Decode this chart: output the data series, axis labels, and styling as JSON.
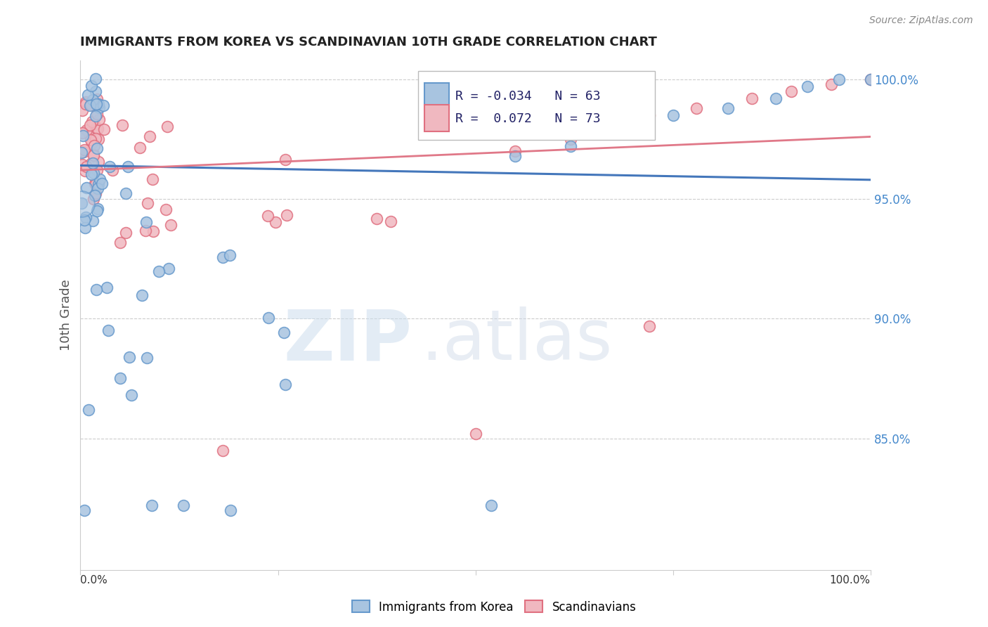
{
  "title": "IMMIGRANTS FROM KOREA VS SCANDINAVIAN 10TH GRADE CORRELATION CHART",
  "source": "Source: ZipAtlas.com",
  "ylabel": "10th Grade",
  "ylabel_right_values": [
    1.0,
    0.95,
    0.9,
    0.85
  ],
  "xlim": [
    0.0,
    1.0
  ],
  "ylim": [
    0.795,
    1.008
  ],
  "background_color": "#ffffff",
  "grid_color": "#cccccc",
  "korea_color": "#a8c4e0",
  "korea_edge_color": "#6699cc",
  "scand_color": "#f0b8c0",
  "scand_edge_color": "#e07080",
  "korea_line_color": "#4477bb",
  "scand_line_color": "#e07888",
  "legend_label_korea": "Immigrants from Korea",
  "legend_label_scand": "Scandinavians",
  "korea_R": -0.034,
  "korea_N": 63,
  "scand_R": 0.072,
  "scand_N": 73,
  "korea_line_x": [
    0.0,
    1.0
  ],
  "korea_line_y": [
    0.964,
    0.958
  ],
  "scand_line_x": [
    0.0,
    1.0
  ],
  "scand_line_y": [
    0.962,
    0.976
  ],
  "watermark_zip": "ZIP",
  "watermark_atlas": ".atlas"
}
